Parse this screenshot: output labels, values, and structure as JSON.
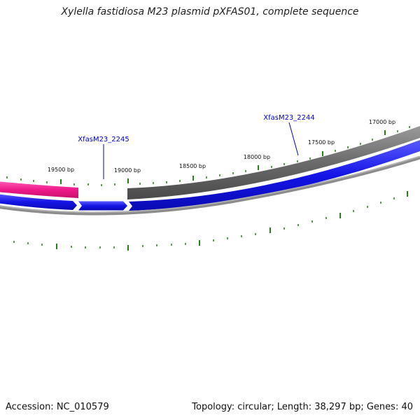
{
  "title": "Xylella fastidiosa M23 plasmid pXFAS01, complete sequence",
  "footer": {
    "accession": "Accession: NC_010579",
    "info": "Topology: circular; Length: 38,297 bp; Genes: 40"
  },
  "genes": [
    {
      "label": "XfasM23_2245"
    },
    {
      "label": "XfasM23_2244"
    }
  ],
  "scale": {
    "labels": [
      "19500 bp",
      "19000 bp",
      "18500 bp",
      "18000 bp",
      "17500 bp",
      "17000 bp"
    ]
  },
  "colors": {
    "forward_strand": "#1a1aee",
    "feature_gray": "#6e6e6e",
    "feature_pink": "#ee1a8a",
    "outer_ring": "#8c8c8c",
    "tick": "#2e7d1e",
    "gene_label": "#0000cc"
  }
}
